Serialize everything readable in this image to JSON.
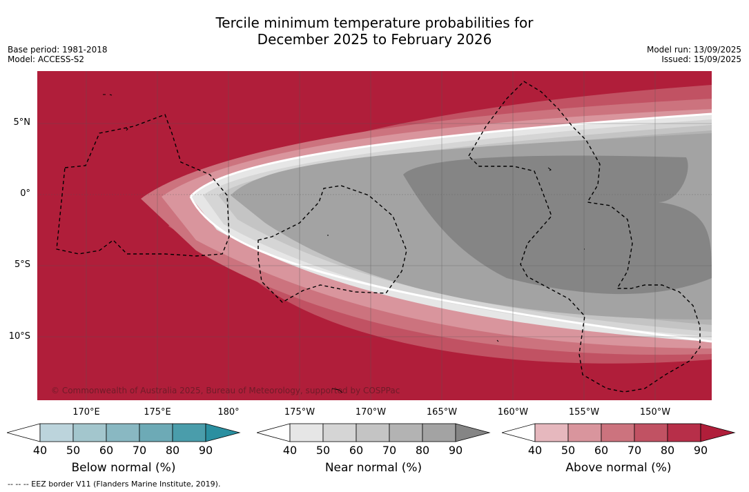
{
  "title_line1": "Tercile minimum temperature probabilities for",
  "title_line2": "December 2025 to February 2026",
  "meta_left": {
    "base_period": "Base period: 1981-2018",
    "model": "Model: ACCESS-S2"
  },
  "meta_right": {
    "model_run": "Model run: 13/09/2025",
    "issued": "Issued: 15/09/2025"
  },
  "lat_labels": [
    "5°N",
    "0°",
    "5°S",
    "10°S"
  ],
  "lon_labels": [
    "170°E",
    "175°E",
    "180°",
    "175°W",
    "170°W",
    "165°W",
    "160°W",
    "155°W",
    "150°W"
  ],
  "copyright": "© Commonwealth of Australia 2025, Bureau of Meteorology, supported by COSPPac",
  "colorbars": [
    {
      "label": "Below normal (%)",
      "ticks": [
        "40",
        "50",
        "60",
        "70",
        "80",
        "90"
      ],
      "colors": [
        "#bcd4dc",
        "#a3c6cd",
        "#89b8c2",
        "#6daab6",
        "#4a9dab",
        "#2a8fa0"
      ]
    },
    {
      "label": "Near normal (%)",
      "ticks": [
        "40",
        "50",
        "60",
        "70",
        "80",
        "90"
      ],
      "colors": [
        "#e6e6e6",
        "#d5d5d5",
        "#c4c4c4",
        "#b3b3b3",
        "#a3a3a3",
        "#858585"
      ]
    },
    {
      "label": "Above normal (%)",
      "ticks": [
        "40",
        "50",
        "60",
        "70",
        "80",
        "90"
      ],
      "colors": [
        "#e6b8be",
        "#d9959d",
        "#cc737e",
        "#c15263",
        "#b72f49",
        "#b01e3a"
      ]
    }
  ],
  "eez_note": "--  --  -- EEZ border V11 (Flanders Marine Institute, 2019)."
}
